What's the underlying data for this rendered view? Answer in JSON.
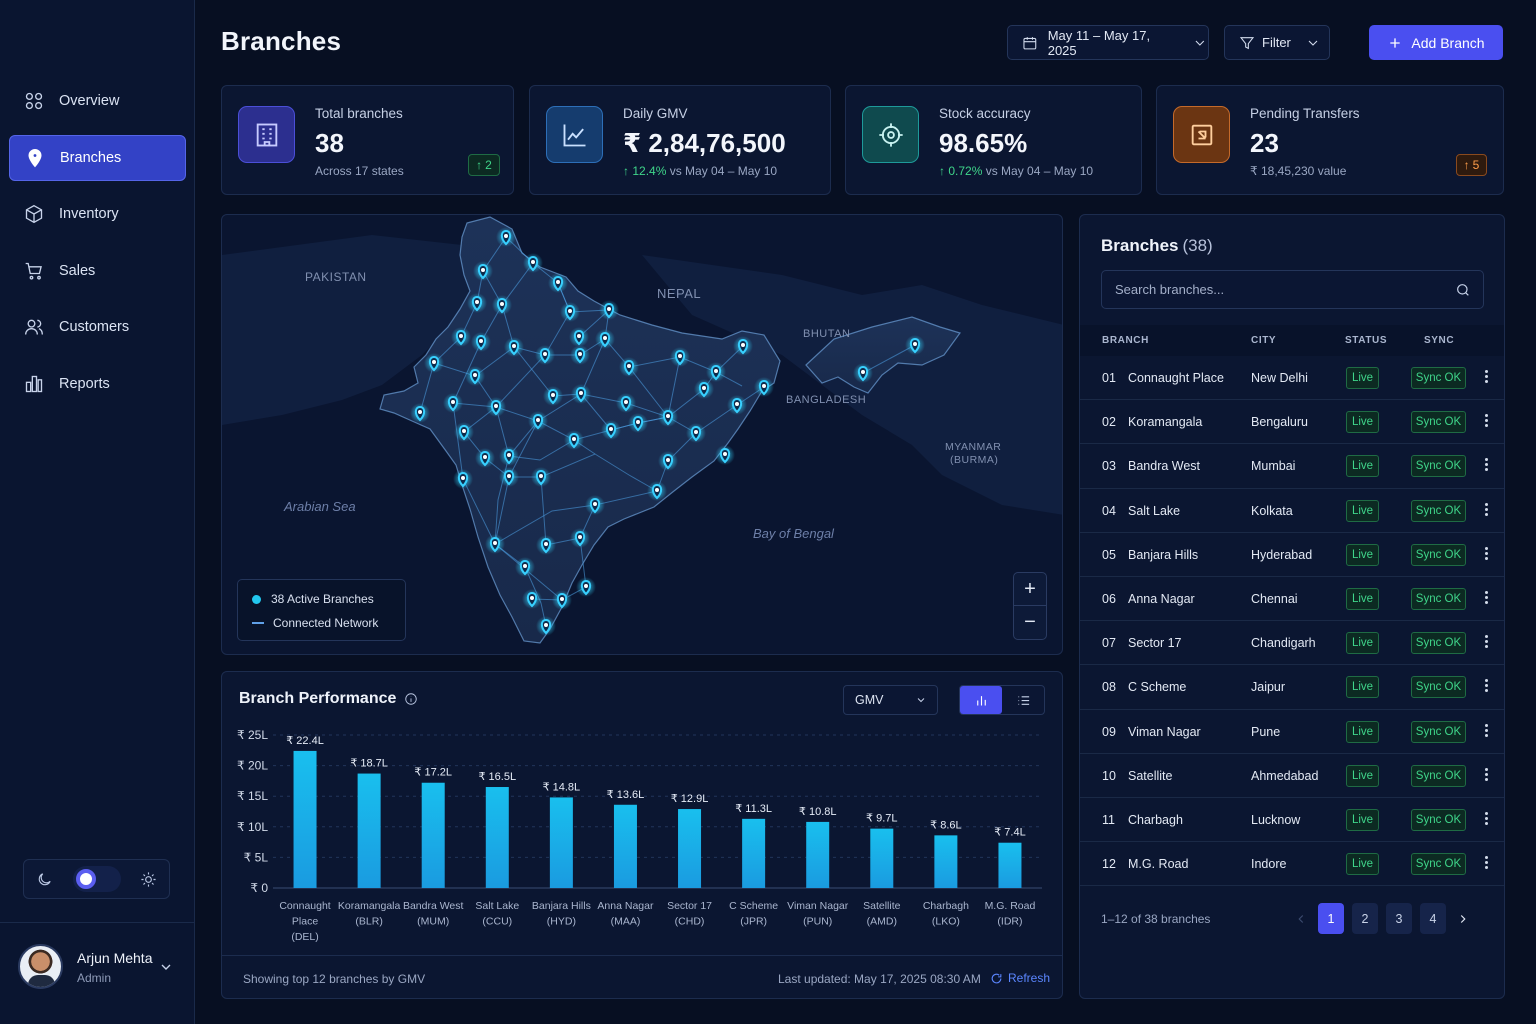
{
  "sidebar": {
    "items": [
      {
        "label": "Overview",
        "icon": "grid-icon"
      },
      {
        "label": "Branches",
        "icon": "location-pin-icon",
        "active": true
      },
      {
        "label": "Inventory",
        "icon": "box-icon"
      },
      {
        "label": "Sales",
        "icon": "cart-icon"
      },
      {
        "label": "Customers",
        "icon": "users-icon"
      },
      {
        "label": "Reports",
        "icon": "bar-chart-icon"
      }
    ],
    "theme": "dark",
    "user": {
      "name": "Arjun Mehta",
      "role": "Admin"
    }
  },
  "header": {
    "title": "Branches",
    "date_range": "May 11 – May 17, 2025",
    "filter_label": "Filter",
    "add_label": "Add Branch"
  },
  "stats": [
    {
      "label": "Total branches",
      "value": "38",
      "sub": "Across 17 states",
      "badge": "2",
      "icon": "building-icon",
      "accent": "#4b4fd8"
    },
    {
      "label": "Daily GMV",
      "value": "₹ 2,84,76,500",
      "delta": "12.4%",
      "sub": "vs May 04 – May 10",
      "icon": "trend-line-icon",
      "accent": "#2d6fb8"
    },
    {
      "label": "Stock accuracy",
      "value": "98.65%",
      "delta": "0.72%",
      "sub": "vs May 04 – May 10",
      "icon": "target-icon",
      "accent": "#1e9a9a"
    },
    {
      "label": "Pending Transfers",
      "value": "23",
      "sub": "₹ 18,45,230 value",
      "badge": "5",
      "icon": "transfer-box-icon",
      "accent": "#c56a2a"
    }
  ],
  "map": {
    "labels": [
      "PAKISTAN",
      "NEPAL",
      "BHUTAN",
      "BANGLADESH",
      "MYANMAR",
      "(BURMA)"
    ],
    "seas": [
      "Arabian Sea",
      "Bay of Bengal"
    ],
    "legend": {
      "active": "38 Active Branches",
      "network": "Connected Network"
    },
    "zoom_in": "+",
    "zoom_out": "−"
  },
  "performance": {
    "title": "Branch Performance",
    "metric": "GMV",
    "footer_left": "Showing top 12 branches by GMV",
    "footer_right": "Last updated: May 17, 2025 08:30 AM",
    "refresh_label": "Refresh"
  },
  "chart_data": {
    "type": "bar",
    "title": "Branch Performance",
    "categories": [
      [
        "Connaught",
        "Place",
        "(DEL)"
      ],
      [
        "Koramangala",
        "(BLR)"
      ],
      [
        "Bandra West",
        "(MUM)"
      ],
      [
        "Salt Lake",
        "(CCU)"
      ],
      [
        "Banjara Hills",
        "(HYD)"
      ],
      [
        "Anna Nagar",
        "(MAA)"
      ],
      [
        "Sector 17",
        "(CHD)"
      ],
      [
        "C Scheme",
        "(JPR)"
      ],
      [
        "Viman Nagar",
        "(PUN)"
      ],
      [
        "Satellite",
        "(AMD)"
      ],
      [
        "Charbagh",
        "(LKO)"
      ],
      [
        "M.G. Road",
        "(IDR)"
      ]
    ],
    "values": [
      22.4,
      18.7,
      17.2,
      16.5,
      14.8,
      13.6,
      12.9,
      11.3,
      10.8,
      9.7,
      8.6,
      7.4
    ],
    "value_labels": [
      "₹ 22.4L",
      "₹ 18.7L",
      "₹ 17.2L",
      "₹ 16.5L",
      "₹ 14.8L",
      "₹ 13.6L",
      "₹ 12.9L",
      "₹ 11.3L",
      "₹ 10.8L",
      "₹ 9.7L",
      "₹ 8.6L",
      "₹ 7.4L"
    ],
    "yticks": [
      0,
      5,
      10,
      15,
      20,
      25
    ],
    "ytick_labels": [
      "₹ 0",
      "₹ 5L",
      "₹ 10L",
      "₹ 15L",
      "₹ 20L",
      "₹ 25L"
    ],
    "ylim": [
      0,
      25
    ],
    "grid": true,
    "bar_color": "#19bfee"
  },
  "table": {
    "title": "Branches",
    "count": "(38)",
    "search_placeholder": "Search branches...",
    "columns": [
      "BRANCH",
      "CITY",
      "STATUS",
      "SYNC"
    ],
    "rows": [
      {
        "num": "01",
        "branch": "Connaught Place",
        "city": "New Delhi",
        "status": "Live",
        "sync": "Sync OK"
      },
      {
        "num": "02",
        "branch": "Koramangala",
        "city": "Bengaluru",
        "status": "Live",
        "sync": "Sync OK"
      },
      {
        "num": "03",
        "branch": "Bandra West",
        "city": "Mumbai",
        "status": "Live",
        "sync": "Sync OK"
      },
      {
        "num": "04",
        "branch": "Salt Lake",
        "city": "Kolkata",
        "status": "Live",
        "sync": "Sync OK"
      },
      {
        "num": "05",
        "branch": "Banjara Hills",
        "city": "Hyderabad",
        "status": "Live",
        "sync": "Sync OK"
      },
      {
        "num": "06",
        "branch": "Anna Nagar",
        "city": "Chennai",
        "status": "Live",
        "sync": "Sync OK"
      },
      {
        "num": "07",
        "branch": "Sector 17",
        "city": "Chandigarh",
        "status": "Live",
        "sync": "Sync OK"
      },
      {
        "num": "08",
        "branch": "C Scheme",
        "city": "Jaipur",
        "status": "Live",
        "sync": "Sync OK"
      },
      {
        "num": "09",
        "branch": "Viman Nagar",
        "city": "Pune",
        "status": "Live",
        "sync": "Sync OK"
      },
      {
        "num": "10",
        "branch": "Satellite",
        "city": "Ahmedabad",
        "status": "Live",
        "sync": "Sync OK"
      },
      {
        "num": "11",
        "branch": "Charbagh",
        "city": "Lucknow",
        "status": "Live",
        "sync": "Sync OK"
      },
      {
        "num": "12",
        "branch": "M.G. Road",
        "city": "Indore",
        "status": "Live",
        "sync": "Sync OK"
      }
    ],
    "range_text": "1–12 of 38 branches",
    "pages": [
      "1",
      "2",
      "3",
      "4"
    ],
    "current_page": "1"
  }
}
